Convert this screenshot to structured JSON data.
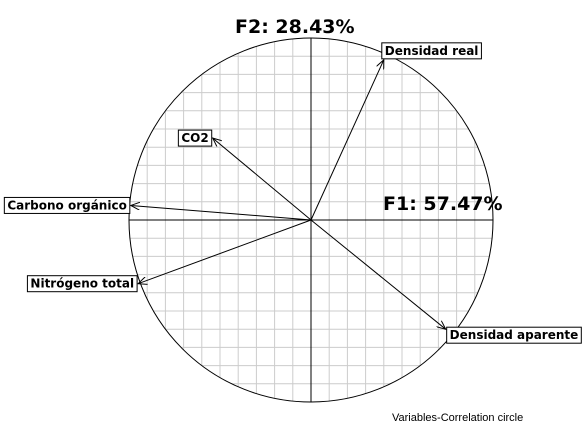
{
  "chart_data": {
    "type": "scatter",
    "title": "Variables-Correlation circle",
    "xlabel": "F1: 57.47%",
    "ylabel": "F2: 28.43%",
    "xlim": [
      -1,
      1
    ],
    "ylim": [
      -1,
      1
    ],
    "grid": true,
    "variables": [
      {
        "name": "Densidad real",
        "x": 0.4,
        "y": 0.88
      },
      {
        "name": "CO2",
        "x": -0.54,
        "y": 0.45
      },
      {
        "name": "Carbono orgánico",
        "x": -0.99,
        "y": 0.08
      },
      {
        "name": "Nitrógeno total",
        "x": -0.95,
        "y": -0.35
      },
      {
        "name": "Densidad aparente",
        "x": 0.74,
        "y": -0.6
      }
    ]
  }
}
